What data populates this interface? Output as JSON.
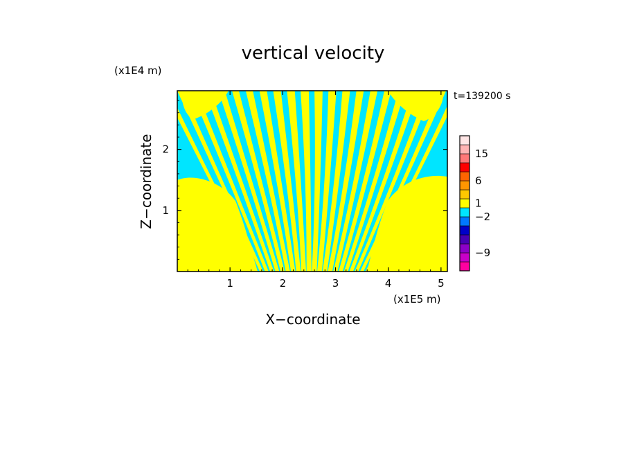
{
  "chart_data": {
    "type": "heatmap",
    "title": "vertical velocity",
    "xlabel": "X−coordinate",
    "ylabel": "Z−coordinate",
    "x_unit": "(x1E5 m)",
    "y_unit": "(x1E4 m)",
    "time_label": "t=139200 s",
    "x_ticks": [
      "1",
      "2",
      "3",
      "4",
      "5"
    ],
    "y_ticks": [
      "1",
      "2"
    ],
    "xlim": [
      0,
      5.12
    ],
    "ylim": [
      0,
      2.96
    ],
    "field_colors": {
      "positive": "#ffff00",
      "negative": "#00e5ff"
    },
    "colorbar": {
      "bins": [
        {
          "color": "#ff00a0"
        },
        {
          "color": "#c800c8"
        },
        {
          "color": "#8c00c8"
        },
        {
          "color": "#4600b4"
        },
        {
          "color": "#0000c8"
        },
        {
          "color": "#0078ff"
        },
        {
          "color": "#00e5ff"
        },
        {
          "color": "#ffff00"
        },
        {
          "color": "#ffc800"
        },
        {
          "color": "#ff9600"
        },
        {
          "color": "#ff6400"
        },
        {
          "color": "#ff0000"
        },
        {
          "color": "#ff7878"
        },
        {
          "color": "#ffb4b4"
        },
        {
          "color": "#ffe6e6"
        }
      ],
      "labels": [
        "15",
        "6",
        "1",
        "−2",
        "−9"
      ]
    }
  }
}
